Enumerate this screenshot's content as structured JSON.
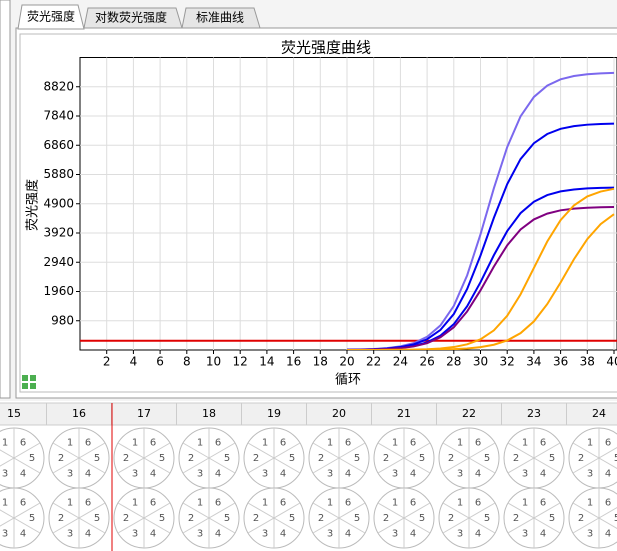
{
  "tabs": [
    "荧光强度",
    "对数荧光强度",
    "标准曲线"
  ],
  "chart_data": {
    "type": "line",
    "title": "荧光强度曲线",
    "x_label": "循环",
    "y_label": "荧光强度",
    "x": [
      20,
      21,
      22,
      23,
      24,
      25,
      26,
      27,
      28,
      29,
      30,
      31,
      32,
      33,
      34,
      35,
      36,
      37,
      38,
      39,
      40
    ],
    "series": [
      {
        "color": "#7b68ee",
        "values": [
          8,
          17,
          32,
          62,
          121,
          231,
          441,
          823,
          1476,
          2501,
          3875,
          5416,
          6798,
          7828,
          8478,
          8857,
          9069,
          9179,
          9238,
          9268,
          9283
        ]
      },
      {
        "color": "#0000ee",
        "values": [
          7,
          14,
          26,
          51,
          99,
          189,
          360,
          672,
          1206,
          2044,
          3167,
          4426,
          5556,
          6397,
          6928,
          7237,
          7411,
          7501,
          7549,
          7574,
          7586
        ]
      },
      {
        "color": "#0000ee",
        "values": [
          5,
          10,
          19,
          36,
          71,
          135,
          258,
          482,
          865,
          1466,
          2271,
          3174,
          3984,
          4587,
          4968,
          5190,
          5314,
          5379,
          5414,
          5431,
          5440
        ]
      },
      {
        "color": "#800080",
        "values": [
          4,
          9,
          17,
          32,
          62,
          119,
          228,
          425,
          762,
          1291,
          2000,
          2795,
          3508,
          4039,
          4375,
          4570,
          4680,
          4736,
          4767,
          4782,
          4790
        ]
      },
      {
        "color": "#ffa500",
        "values": [
          0,
          1,
          2,
          4,
          7,
          14,
          26,
          51,
          99,
          190,
          357,
          656,
          1148,
          1864,
          2750,
          3635,
          4351,
          4846,
          5145,
          5309,
          5401
        ]
      },
      {
        "color": "#ffa500",
        "values": [
          0,
          0,
          1,
          1,
          2,
          4,
          8,
          15,
          28,
          52,
          96,
          176,
          318,
          565,
          958,
          1538,
          2262,
          3041,
          3715,
          4219,
          4550
        ]
      }
    ],
    "threshold": 310,
    "threshold_color": "#e00000",
    "xlim": [
      0,
      40
    ],
    "ylim": [
      0,
      9800
    ],
    "xticks": [
      2,
      4,
      6,
      8,
      10,
      12,
      14,
      16,
      18,
      20,
      22,
      24,
      26,
      28,
      30,
      32,
      34,
      36,
      38,
      40
    ],
    "yticks": [
      980,
      1960,
      2940,
      3920,
      4900,
      5880,
      6860,
      7840,
      8820
    ],
    "grid": true
  },
  "wells": {
    "columns": [
      "15",
      "16",
      "17",
      "18",
      "19",
      "20",
      "21",
      "22",
      "23",
      "24"
    ],
    "segments": [
      "1",
      "6",
      "5",
      "4",
      "3",
      "2"
    ]
  }
}
